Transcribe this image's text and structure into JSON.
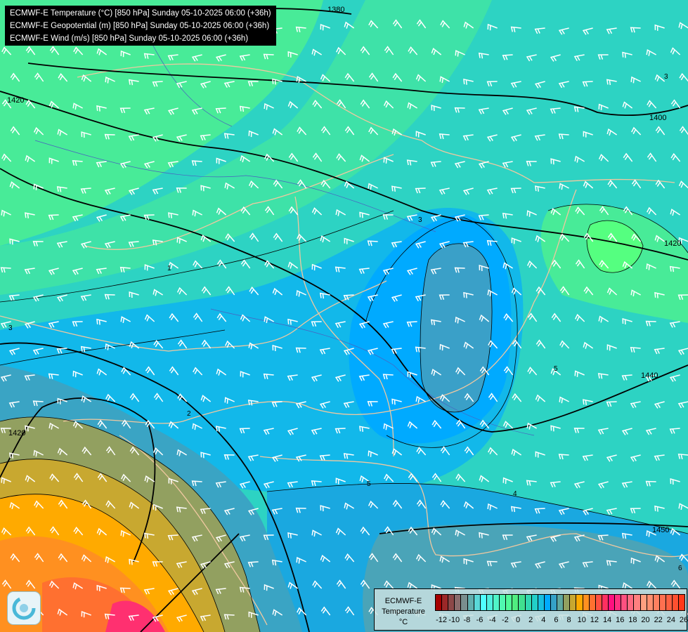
{
  "header": {
    "lines": [
      "ECMWF-E Temperature (°C) [850 hPa] Sunday 05-10-2025 06:00 (+36h)",
      "ECMWF-E Geopotential (m) [850 hPa] Sunday 05-10-2025 06:00 (+36h)",
      "ECMWF-E Wind (m/s) [850 hPa] Sunday 05-10-2025 06:00 (+36h)"
    ]
  },
  "legend": {
    "title_line1": "ECMWF-E",
    "title_line2": "Temperature",
    "unit": "°C",
    "ticks": [
      "-12",
      "-10",
      "-8",
      "-6",
      "-4",
      "-2",
      "0",
      "2",
      "4",
      "6",
      "8",
      "10",
      "12",
      "14",
      "16",
      "18",
      "20",
      "22",
      "24",
      "26"
    ],
    "colors": [
      "#a50000",
      "#9c2828",
      "#8c4848",
      "#8a6c6c",
      "#7a8e8e",
      "#62aeae",
      "#5ad8d8",
      "#50ffff",
      "#50f0e0",
      "#50f5c8",
      "#50f8b0",
      "#50fa98",
      "#50ee80",
      "#40e090",
      "#30d8b0",
      "#22cfc8",
      "#18bfe0",
      "#00aaff",
      "#35a2c8",
      "#60a8a0",
      "#92a060",
      "#c8a830",
      "#ffaa00",
      "#ff9020",
      "#ff7030",
      "#ff5040",
      "#ff3060",
      "#ff1080",
      "#ff3080",
      "#ff5080",
      "#ff6a80",
      "#ff8080",
      "#ffa080",
      "#ff9070",
      "#ff8060",
      "#ff7050",
      "#ff6040",
      "#ff5030",
      "#ff3818"
    ]
  },
  "map": {
    "geopotential_labels": [
      "1380",
      "1420",
      "1400",
      "1420",
      "1440",
      "1450",
      "1420"
    ],
    "temperature_labels": [
      "3",
      "1",
      "3",
      "2",
      "5",
      "4",
      "3",
      "5",
      "6"
    ]
  },
  "logo": {
    "name": "meteo-logo-icon"
  }
}
